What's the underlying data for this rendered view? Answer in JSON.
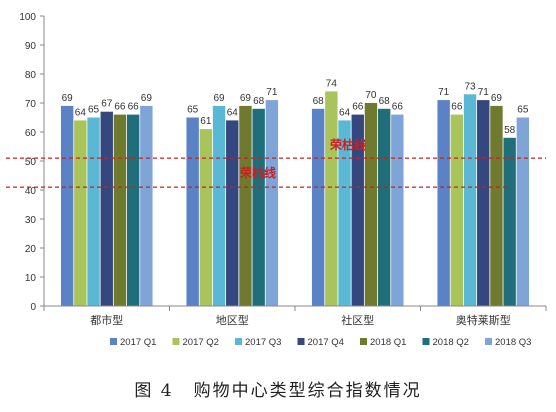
{
  "chart_data": {
    "type": "bar",
    "title": "",
    "xlabel": "",
    "ylabel": "",
    "ylim": [
      0,
      100
    ],
    "yticks": [
      0,
      10,
      20,
      30,
      40,
      50,
      60,
      70,
      80,
      90,
      100
    ],
    "grid": false,
    "legend_position": "bottom",
    "categories": [
      "都市型",
      "地区型",
      "社区型",
      "奥特莱斯型"
    ],
    "series": [
      {
        "name": "2017 Q1",
        "color": "#5b82c4",
        "values": [
          69,
          65,
          68,
          71
        ]
      },
      {
        "name": "2017 Q2",
        "color": "#a8c45a",
        "values": [
          64,
          61,
          74,
          66
        ]
      },
      {
        "name": "2017 Q3",
        "color": "#5ab8d4",
        "values": [
          65,
          69,
          64,
          73
        ]
      },
      {
        "name": "2017 Q4",
        "color": "#34477f",
        "values": [
          67,
          64,
          66,
          71
        ]
      },
      {
        "name": "2018 Q1",
        "color": "#6f7a2e",
        "values": [
          66,
          69,
          70,
          69
        ]
      },
      {
        "name": "2018 Q2",
        "color": "#1f6e7a",
        "values": [
          66,
          68,
          68,
          58
        ]
      },
      {
        "name": "2018 Q3",
        "color": "#7ea4d8",
        "values": [
          69,
          71,
          66,
          65
        ]
      }
    ],
    "reference_lines": [
      {
        "label": "荣枯线",
        "value": 51,
        "color": "#cc1f1f",
        "style": "dashed"
      },
      {
        "label": "荣枯线",
        "value": 41,
        "color": "#cc1f1f",
        "style": "dashed"
      }
    ]
  },
  "caption": {
    "figure_no": "图 4",
    "text": "购物中心类型综合指数情况"
  }
}
